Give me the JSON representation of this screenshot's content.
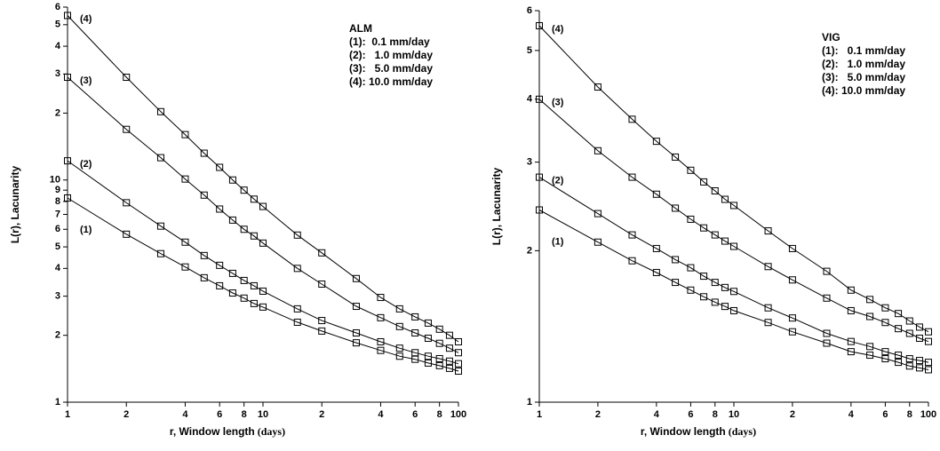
{
  "chart_data": [
    {
      "type": "line",
      "markers": "square",
      "log_x": true,
      "log_y": true,
      "title": "ALM",
      "annotations": [
        "(1):  0.1 mm/day",
        "(2):   1.0 mm/day",
        "(3):   5.0 mm/day",
        "(4): 10.0 mm/day"
      ],
      "x_label": "r, Window length",
      "x_label_unit": "(days)",
      "y_label": "L(r), Lacunarity",
      "x": [
        1,
        2,
        3,
        4,
        5,
        6,
        7,
        8,
        9,
        10,
        15,
        20,
        30,
        40,
        50,
        60,
        70,
        80,
        90,
        100
      ],
      "xlim": [
        1,
        100
      ],
      "xticks": [
        1,
        2,
        4,
        6,
        8,
        10,
        {
          "value": 20,
          "label": "2"
        },
        {
          "value": 40,
          "label": "4"
        },
        {
          "value": 60,
          "label": "6"
        },
        {
          "value": 80,
          "label": "8"
        },
        100
      ],
      "ylim": [
        1,
        60
      ],
      "yticks": [
        1,
        2,
        3,
        4,
        5,
        6,
        7,
        8,
        9,
        10,
        {
          "value": 20,
          "label": "2"
        },
        {
          "value": 30,
          "label": "3"
        },
        {
          "value": 40,
          "label": "4"
        },
        {
          "value": 50,
          "label": "5"
        },
        {
          "value": 60,
          "label": "6"
        }
      ],
      "series": [
        {
          "name": "(1)",
          "color": "#000000",
          "values": [
            8.3,
            5.7,
            4.66,
            4.06,
            3.63,
            3.34,
            3.1,
            2.94,
            2.78,
            2.68,
            2.29,
            2.09,
            1.85,
            1.71,
            1.61,
            1.56,
            1.5,
            1.46,
            1.42,
            1.38
          ]
        },
        {
          "name": "(2)",
          "color": "#000000",
          "values": [
            12.2,
            7.9,
            6.2,
            5.25,
            4.57,
            4.13,
            3.8,
            3.53,
            3.34,
            3.16,
            2.63,
            2.33,
            2.05,
            1.87,
            1.75,
            1.67,
            1.61,
            1.57,
            1.53,
            1.49
          ]
        },
        {
          "name": "(3)",
          "color": "#000000",
          "values": [
            29,
            16.9,
            12.6,
            10.1,
            8.55,
            7.4,
            6.6,
            6.0,
            5.6,
            5.2,
            4.0,
            3.4,
            2.7,
            2.4,
            2.19,
            2.05,
            1.94,
            1.84,
            1.75,
            1.67
          ]
        },
        {
          "name": "(4)",
          "color": "#000000",
          "values": [
            55,
            29,
            20.3,
            16,
            13.2,
            11.4,
            10,
            9,
            8.2,
            7.6,
            5.65,
            4.7,
            3.6,
            2.96,
            2.63,
            2.42,
            2.27,
            2.13,
            2.0,
            1.87
          ]
        }
      ]
    },
    {
      "type": "line",
      "markers": "square",
      "log_x": true,
      "log_y": true,
      "title": "VIG",
      "annotations": [
        "(1):   0.1 mm/day",
        "(2):   1.0 mm/day",
        "(3):   5.0 mm/day",
        "(4): 10.0 mm/day"
      ],
      "x_label": "r, Window length",
      "x_label_unit": "(days)",
      "y_label": "L(r), Lacunarity",
      "x": [
        1,
        2,
        3,
        4,
        5,
        6,
        7,
        8,
        9,
        10,
        15,
        20,
        30,
        40,
        50,
        60,
        70,
        80,
        90,
        100
      ],
      "xlim": [
        1,
        100
      ],
      "xticks": [
        1,
        2,
        4,
        6,
        8,
        10,
        {
          "value": 20,
          "label": "2"
        },
        {
          "value": 40,
          "label": "4"
        },
        {
          "value": 60,
          "label": "6"
        },
        {
          "value": 80,
          "label": "8"
        },
        100
      ],
      "ylim": [
        1,
        6
      ],
      "yticks": [
        1,
        2,
        3,
        4,
        5,
        6
      ],
      "series": [
        {
          "name": "(1)",
          "color": "#000000",
          "values": [
            2.41,
            2.08,
            1.91,
            1.81,
            1.73,
            1.67,
            1.62,
            1.58,
            1.55,
            1.52,
            1.44,
            1.38,
            1.31,
            1.26,
            1.24,
            1.22,
            1.2,
            1.18,
            1.17,
            1.16
          ]
        },
        {
          "name": "(2)",
          "color": "#000000",
          "values": [
            2.8,
            2.37,
            2.15,
            2.02,
            1.92,
            1.85,
            1.78,
            1.73,
            1.69,
            1.66,
            1.54,
            1.47,
            1.37,
            1.32,
            1.29,
            1.26,
            1.24,
            1.22,
            1.21,
            1.2
          ]
        },
        {
          "name": "(3)",
          "color": "#000000",
          "values": [
            4.0,
            3.16,
            2.8,
            2.59,
            2.43,
            2.31,
            2.22,
            2.15,
            2.09,
            2.04,
            1.86,
            1.75,
            1.61,
            1.52,
            1.48,
            1.44,
            1.4,
            1.37,
            1.34,
            1.32
          ]
        },
        {
          "name": "(4)",
          "color": "#000000",
          "values": [
            5.6,
            4.23,
            3.65,
            3.3,
            3.07,
            2.89,
            2.74,
            2.63,
            2.53,
            2.46,
            2.19,
            2.02,
            1.82,
            1.67,
            1.6,
            1.54,
            1.5,
            1.45,
            1.41,
            1.38
          ]
        }
      ]
    }
  ]
}
